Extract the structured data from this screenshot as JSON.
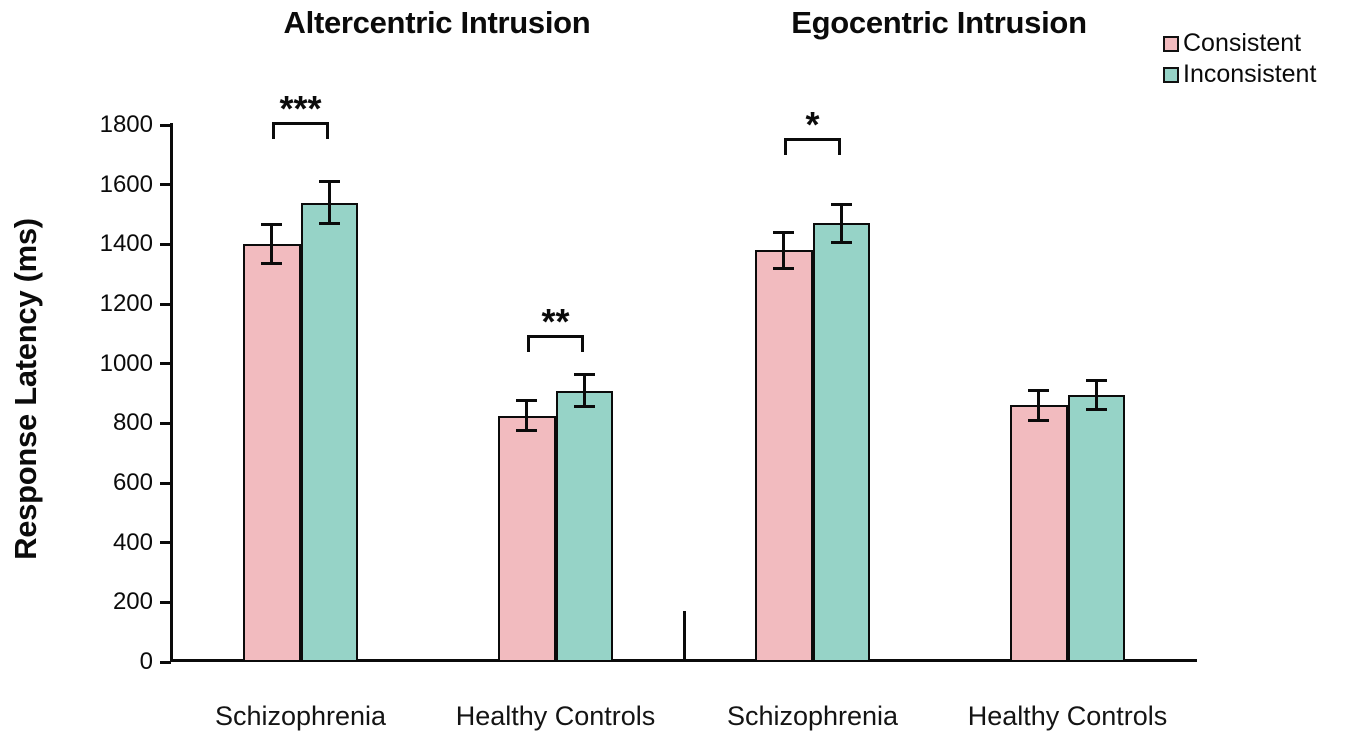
{
  "chart_data": {
    "type": "bar",
    "ylabel": "Response Latency (ms)",
    "ylim": [
      0,
      1800
    ],
    "ytick_step": 200,
    "ytick_labels": [
      "0",
      "200",
      "400",
      "600",
      "800",
      "1000",
      "1200",
      "1400",
      "1600",
      "1800"
    ],
    "grid": false,
    "legend_position": "top-right",
    "series": [
      {
        "name": "Consistent",
        "color": "#F2BBBF"
      },
      {
        "name": "Inconsistent",
        "color": "#96D3C7"
      }
    ],
    "panels": [
      {
        "title": "Altercentric Intrusion",
        "groups": [
          {
            "label": "Schizophrenia",
            "values": {
              "Consistent": 1400,
              "Inconsistent": 1540
            },
            "errors": {
              "Consistent": 65,
              "Inconsistent": 70
            },
            "significance": "***"
          },
          {
            "label": "Healthy Controls",
            "values": {
              "Consistent": 825,
              "Inconsistent": 910
            },
            "errors": {
              "Consistent": 50,
              "Inconsistent": 55
            },
            "significance": "**"
          }
        ]
      },
      {
        "title": "Egocentric Intrusion",
        "groups": [
          {
            "label": "Schizophrenia",
            "values": {
              "Consistent": 1380,
              "Inconsistent": 1470
            },
            "errors": {
              "Consistent": 60,
              "Inconsistent": 65
            },
            "significance": "*"
          },
          {
            "label": "Healthy Controls",
            "values": {
              "Consistent": 860,
              "Inconsistent": 895
            },
            "errors": {
              "Consistent": 50,
              "Inconsistent": 50
            },
            "significance": null
          }
        ]
      }
    ]
  }
}
